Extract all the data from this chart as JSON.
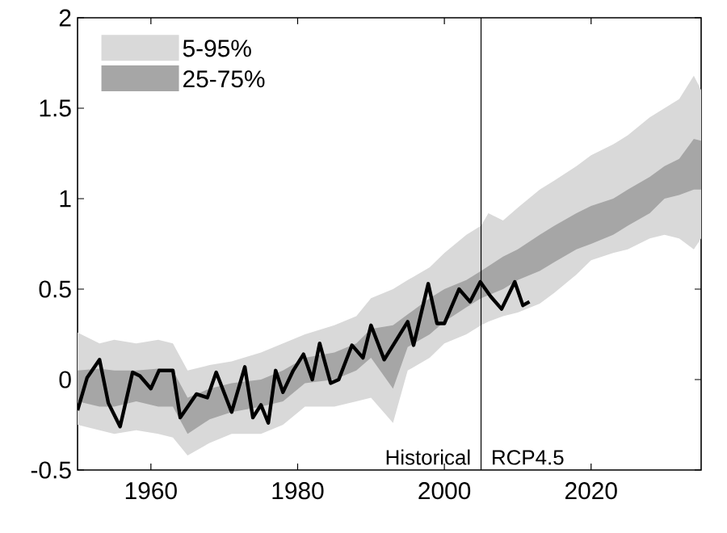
{
  "chart_data": {
    "type": "line",
    "xlim": [
      1950,
      2035
    ],
    "ylim": [
      -0.5,
      2
    ],
    "xticks": [
      1960,
      1980,
      2000,
      2020
    ],
    "yticks": [
      -0.5,
      0,
      0.5,
      1,
      1.5,
      2
    ],
    "grid": false,
    "legend": "top left",
    "line_style": "solid",
    "marker": "none",
    "series": [
      {
        "name": "5-95%",
        "color": "#d9d9d9",
        "x": [
          1950,
          1953,
          1955,
          1958,
          1961,
          1963,
          1965,
          1968,
          1971,
          1975,
          1978,
          1981,
          1985,
          1988,
          1990,
          1993,
          1995,
          1998,
          2000,
          2003,
          2005,
          2006,
          2008,
          2010,
          2013,
          2015,
          2018,
          2020,
          2023,
          2025,
          2028,
          2030,
          2032,
          2034,
          2035
        ],
        "values": [
          null,
          null,
          null,
          null,
          null,
          null,
          null,
          null,
          null,
          null,
          null,
          null,
          null,
          null,
          null,
          null,
          null,
          null,
          null,
          null,
          null,
          null,
          null,
          null,
          null,
          null,
          null,
          null,
          null,
          null,
          null,
          null,
          null,
          null,
          null
        ],
        "upper": [
          0.26,
          0.2,
          0.22,
          0.2,
          0.22,
          0.2,
          0.05,
          0.08,
          0.1,
          0.15,
          0.2,
          0.25,
          0.3,
          0.35,
          0.45,
          0.5,
          0.55,
          0.62,
          0.7,
          0.8,
          0.85,
          0.92,
          0.88,
          0.95,
          1.05,
          1.1,
          1.18,
          1.24,
          1.3,
          1.35,
          1.45,
          1.5,
          1.55,
          1.68,
          1.6
        ],
        "lower": [
          -0.25,
          -0.28,
          -0.3,
          -0.28,
          -0.3,
          -0.32,
          -0.42,
          -0.35,
          -0.3,
          -0.3,
          -0.25,
          -0.15,
          -0.15,
          -0.12,
          -0.1,
          -0.24,
          0.05,
          0.12,
          0.2,
          0.25,
          0.3,
          0.32,
          0.35,
          0.37,
          0.42,
          0.48,
          0.58,
          0.66,
          0.7,
          0.72,
          0.78,
          0.8,
          0.78,
          0.72,
          0.78
        ]
      },
      {
        "name": "25-75%",
        "color": "#a6a6a6",
        "x": [
          1950,
          1953,
          1955,
          1958,
          1961,
          1963,
          1965,
          1968,
          1971,
          1975,
          1978,
          1981,
          1985,
          1988,
          1990,
          1993,
          1995,
          1998,
          2000,
          2003,
          2005,
          2008,
          2010,
          2013,
          2015,
          2018,
          2020,
          2023,
          2025,
          2028,
          2030,
          2032,
          2034,
          2035
        ],
        "values": [
          null,
          null,
          null,
          null,
          null,
          null,
          null,
          null,
          null,
          null,
          null,
          null,
          null,
          null,
          null,
          null,
          null,
          null,
          null,
          null,
          null,
          null,
          null,
          null,
          null,
          null,
          null,
          null,
          null,
          null,
          null,
          null,
          null,
          null
        ],
        "upper": [
          0.05,
          0.06,
          0.05,
          0.05,
          0.06,
          0.05,
          -0.1,
          -0.05,
          -0.02,
          0.0,
          0.05,
          0.12,
          0.15,
          0.2,
          0.28,
          0.3,
          0.36,
          0.45,
          0.5,
          0.55,
          0.6,
          0.68,
          0.72,
          0.8,
          0.85,
          0.92,
          0.96,
          1.0,
          1.05,
          1.12,
          1.18,
          1.22,
          1.33,
          1.32
        ],
        "lower": [
          -0.12,
          -0.15,
          -0.15,
          -0.12,
          -0.15,
          -0.15,
          -0.3,
          -0.22,
          -0.18,
          -0.15,
          -0.12,
          -0.02,
          0.0,
          0.05,
          0.12,
          -0.05,
          0.18,
          0.25,
          0.32,
          0.4,
          0.45,
          0.5,
          0.55,
          0.6,
          0.65,
          0.72,
          0.75,
          0.8,
          0.85,
          0.92,
          1.0,
          1.02,
          1.05,
          1.05
        ]
      },
      {
        "color": "#000000",
        "x": [
          1950,
          1951.3,
          1953,
          1954.2,
          1955.8,
          1957.5,
          1958.5,
          1960,
          1961.1,
          1963,
          1964,
          1966.2,
          1967.7,
          1968.9,
          1971,
          1972.8,
          1973.9,
          1975,
          1976,
          1977,
          1978,
          1979.4,
          1980.8,
          1982,
          1983,
          1984.5,
          1985.6,
          1987.4,
          1988.9,
          1990,
          1991.8,
          1995,
          1995.8,
          1997.8,
          1999,
          2000,
          2002,
          2003.5,
          2004.9,
          2006.3,
          2007.8,
          2009.6,
          2010.7,
          2011.6
        ],
        "values": [
          -0.17,
          0.01,
          0.11,
          -0.13,
          -0.26,
          0.04,
          0.02,
          -0.05,
          0.05,
          0.05,
          -0.21,
          -0.08,
          -0.1,
          0.04,
          -0.18,
          0.07,
          -0.21,
          -0.14,
          -0.24,
          0.05,
          -0.07,
          0.05,
          0.14,
          0.0,
          0.2,
          -0.02,
          0.0,
          0.19,
          0.12,
          0.3,
          0.11,
          0.32,
          0.19,
          0.53,
          0.31,
          0.31,
          0.5,
          0.43,
          0.54,
          0.46,
          0.39,
          0.54,
          0.41,
          0.43
        ]
      }
    ],
    "ref_lines": [
      {
        "axis": "x",
        "value": 2005,
        "color": "#000000"
      }
    ],
    "annotations": [
      "Historical",
      "RCP4.5"
    ]
  }
}
